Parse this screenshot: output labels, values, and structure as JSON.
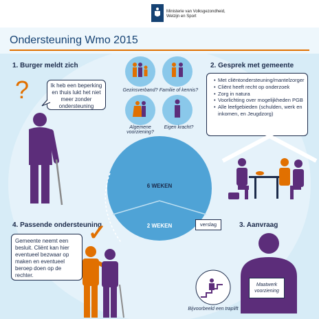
{
  "header": {
    "ministry": "Ministerie van Volksgezondheid,\nWelzijn en Sport"
  },
  "title": "Ondersteuning Wmo 2015",
  "steps": {
    "s1": "1. Burger meldt zich",
    "s2": "2. Gesprek met gemeente",
    "s3": "3. Aanvraag",
    "s4": "4. Passende ondersteuning"
  },
  "speech": "Ik heb een beperking en thuis lukt het niet meer zonder ondersteuning",
  "question_mark": "?",
  "check_mark": "✓",
  "circles": [
    {
      "label": "Gezinsverband?"
    },
    {
      "label": "Familie of kennis?"
    },
    {
      "label": "Algemene voorziening?"
    },
    {
      "label": "Eigen kracht?"
    }
  ],
  "gesprek_items": [
    "Met cliëntondersteuning/mantelzorger",
    "Cliënt heeft recht op onderzoek",
    "Zorg in natura",
    "Voorlichting over mogelijkheden PGB",
    "Alle leefgebieden (schulden, werk en inkomen, en Jeugdzorg)"
  ],
  "cycle": {
    "top": "6 WEKEN",
    "bottom": "2 WEKEN",
    "tag": "verslag"
  },
  "besluit": "Gemeente neemt een besluit. Cliënt kan hier eventueel bezwaar op maken en eventueel beroep doen op de rechter.",
  "maatwerk": "Maatwerk voorziening",
  "traplift": "Bijvoorbeeld een traplift",
  "colors": {
    "navy": "#154273",
    "orange": "#e17000",
    "purple": "#5c2d7a",
    "light_blue": "#d7ecf7",
    "cycle_blue": "#4fa3d6"
  }
}
